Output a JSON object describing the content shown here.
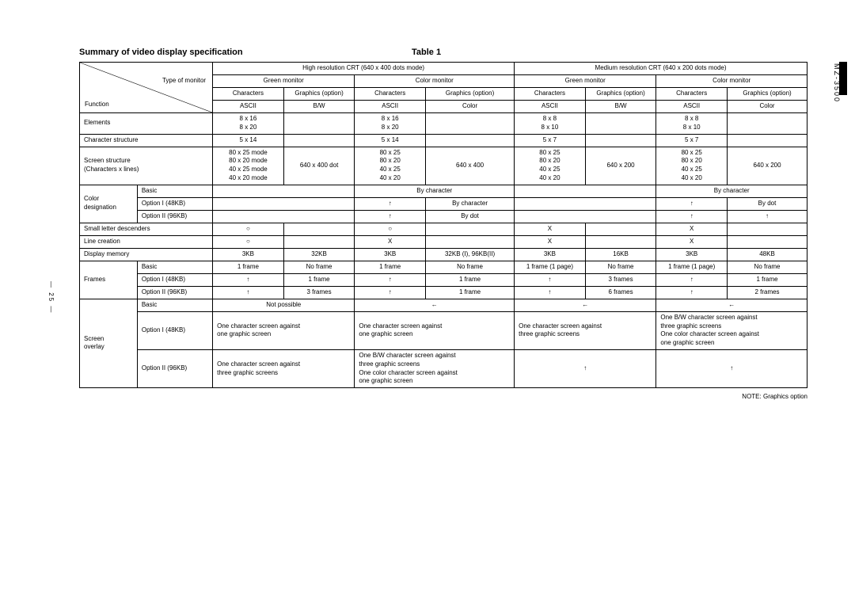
{
  "title": "Summary of video display specification",
  "table_label": "Table 1",
  "side_label": "MZ-3500",
  "page_num": "— 25 —",
  "note": "NOTE: Graphics option",
  "corner": {
    "type_of_monitor": "Type of monitor",
    "function": "Function"
  },
  "top": {
    "high_res": "High resolution CRT (640 x 400 dots mode)",
    "med_res": "Medium resolution CRT (640 x 200 dots mode)",
    "green": "Green monitor",
    "color": "Color monitor",
    "characters": "Characters",
    "graphics": "Graphics (option)",
    "ascii": "ASCII",
    "bw": "B/W",
    "color_mode": "Color"
  },
  "row_labels": {
    "elements": "Elements",
    "char_struct": "Character structure",
    "screen_struct": "Screen structure\n(Characters x lines)",
    "color_desig": "Color\ndesignation",
    "basic": "Basic",
    "opt1": "Option I (48KB)",
    "opt2": "Option II (96KB)",
    "small_desc": "Small letter descenders",
    "line_creation": "Line creation",
    "display_mem": "Display memory",
    "frames": "Frames",
    "screen_overlay": "Screen\noverlay"
  },
  "cells": {
    "elements": {
      "c1": "8 x 16\n8 x 20",
      "c2": "",
      "c3": "8 x 16\n8 x 20",
      "c4": "",
      "c5": "8 x 8\n8 x 10",
      "c6": "",
      "c7": "8 x 8\n8 x 10",
      "c8": ""
    },
    "char_struct": {
      "c1": "5 x 14",
      "c2": "",
      "c3": "5 x 14",
      "c4": "",
      "c5": "5 x 7",
      "c6": "",
      "c7": "5 x 7",
      "c8": ""
    },
    "screen_struct": {
      "c1": "80 x 25 mode\n80 x 20 mode\n40 x 25 mode\n40 x 20 mode",
      "c2": "640 x 400 dot",
      "c3": "80 x 25\n80 x 20\n40 x 25\n40 x 20",
      "c4": "640 x 400",
      "c5": "80 x 25\n80 x 20\n40 x 25\n40 x 20",
      "c6": "640 x 200",
      "c7": "80 x 25\n80 x 20\n40 x 25\n40 x 20",
      "c8": "640 x 200"
    },
    "cd_basic": {
      "c12": "",
      "c34": "By character",
      "c56": "",
      "c78": "By character"
    },
    "cd_opt1": {
      "c12": "",
      "c3": "↑",
      "c4": "By character",
      "c56": "",
      "c7": "↑",
      "c8": "By dot"
    },
    "cd_opt2": {
      "c12": "",
      "c3": "↑",
      "c4": "By dot",
      "c56": "",
      "c7": "↑",
      "c8": "↑"
    },
    "small_desc": {
      "c1": "○",
      "c2": "",
      "c3": "○",
      "c4": "",
      "c5": "X",
      "c6": "",
      "c7": "X",
      "c8": ""
    },
    "line_creation": {
      "c1": "○",
      "c2": "",
      "c3": "X",
      "c4": "",
      "c5": "X",
      "c6": "",
      "c7": "X",
      "c8": ""
    },
    "display_mem": {
      "c1": "3KB",
      "c2": "32KB",
      "c3": "3KB",
      "c4": "32KB (I), 96KB(II)",
      "c5": "3KB",
      "c6": "16KB",
      "c7": "3KB",
      "c8": "48KB"
    },
    "fr_basic": {
      "c1": "1 frame",
      "c2": "No frame",
      "c3": "1 frame",
      "c4": "No frame",
      "c5": "1 frame (1 page)",
      "c6": "No frame",
      "c7": "1 frame (1 page)",
      "c8": "No frame"
    },
    "fr_opt1": {
      "c1": "↑",
      "c2": "1 frame",
      "c3": "↑",
      "c4": "1 frame",
      "c5": "↑",
      "c6": "3 frames",
      "c7": "↑",
      "c8": "1 frame"
    },
    "fr_opt2": {
      "c1": "↑",
      "c2": "3 frames",
      "c3": "↑",
      "c4": "1 frame",
      "c5": "↑",
      "c6": "6 frames",
      "c7": "↑",
      "c8": "2 frames"
    },
    "so_basic": {
      "c12": "Not possible",
      "c34": "←",
      "c56": "←",
      "c78": "←"
    },
    "so_opt1": {
      "c12": "One character screen against\none graphic screen",
      "c34": "One character screen against\none graphic screen",
      "c56": "One character screen against\nthree graphic screens",
      "c78": "One B/W character screen against\nthree graphic screens\nOne color character screen against\none graphic screen"
    },
    "so_opt2": {
      "c12": "One character screen against\nthree graphic screens",
      "c34": "One B/W character screen against\nthree graphic screens\nOne color character screen against\none graphic screen",
      "c56": "↑",
      "c78": "↑"
    }
  }
}
